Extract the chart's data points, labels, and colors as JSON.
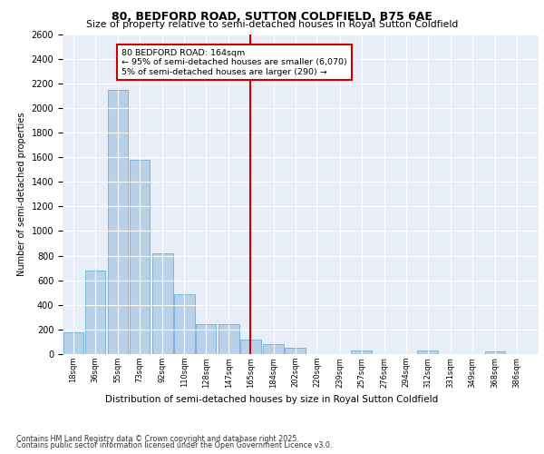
{
  "title1": "80, BEDFORD ROAD, SUTTON COLDFIELD, B75 6AE",
  "title2": "Size of property relative to semi-detached houses in Royal Sutton Coldfield",
  "xlabel": "Distribution of semi-detached houses by size in Royal Sutton Coldfield",
  "ylabel": "Number of semi-detached properties",
  "footnote1": "Contains HM Land Registry data © Crown copyright and database right 2025.",
  "footnote2": "Contains public sector information licensed under the Open Government Licence v3.0.",
  "annotation_title": "80 BEDFORD ROAD: 164sqm",
  "annotation_line1": "← 95% of semi-detached houses are smaller (6,070)",
  "annotation_line2": "5% of semi-detached houses are larger (290) →",
  "property_size": 164,
  "bar_color": "#b8d0e8",
  "bar_edge_color": "#6aaed6",
  "vline_color": "#cc0000",
  "annotation_box_color": "#cc0000",
  "background_color": "#e8eef8",
  "grid_color": "#ffffff",
  "categories": [
    "18sqm",
    "36sqm",
    "55sqm",
    "73sqm",
    "92sqm",
    "110sqm",
    "128sqm",
    "147sqm",
    "165sqm",
    "184sqm",
    "202sqm",
    "220sqm",
    "239sqm",
    "257sqm",
    "276sqm",
    "294sqm",
    "312sqm",
    "331sqm",
    "349sqm",
    "368sqm",
    "386sqm"
  ],
  "bar_centers": [
    18,
    36,
    55,
    73,
    92,
    110,
    128,
    147,
    165,
    184,
    202,
    220,
    239,
    257,
    276,
    294,
    312,
    331,
    349,
    368,
    386
  ],
  "bar_values": [
    175,
    680,
    2150,
    1575,
    820,
    490,
    245,
    240,
    120,
    80,
    50,
    0,
    0,
    30,
    0,
    0,
    30,
    0,
    0,
    25,
    0
  ],
  "ylim": [
    0,
    2600
  ],
  "yticks": [
    0,
    200,
    400,
    600,
    800,
    1000,
    1200,
    1400,
    1600,
    1800,
    2000,
    2200,
    2400,
    2600
  ]
}
